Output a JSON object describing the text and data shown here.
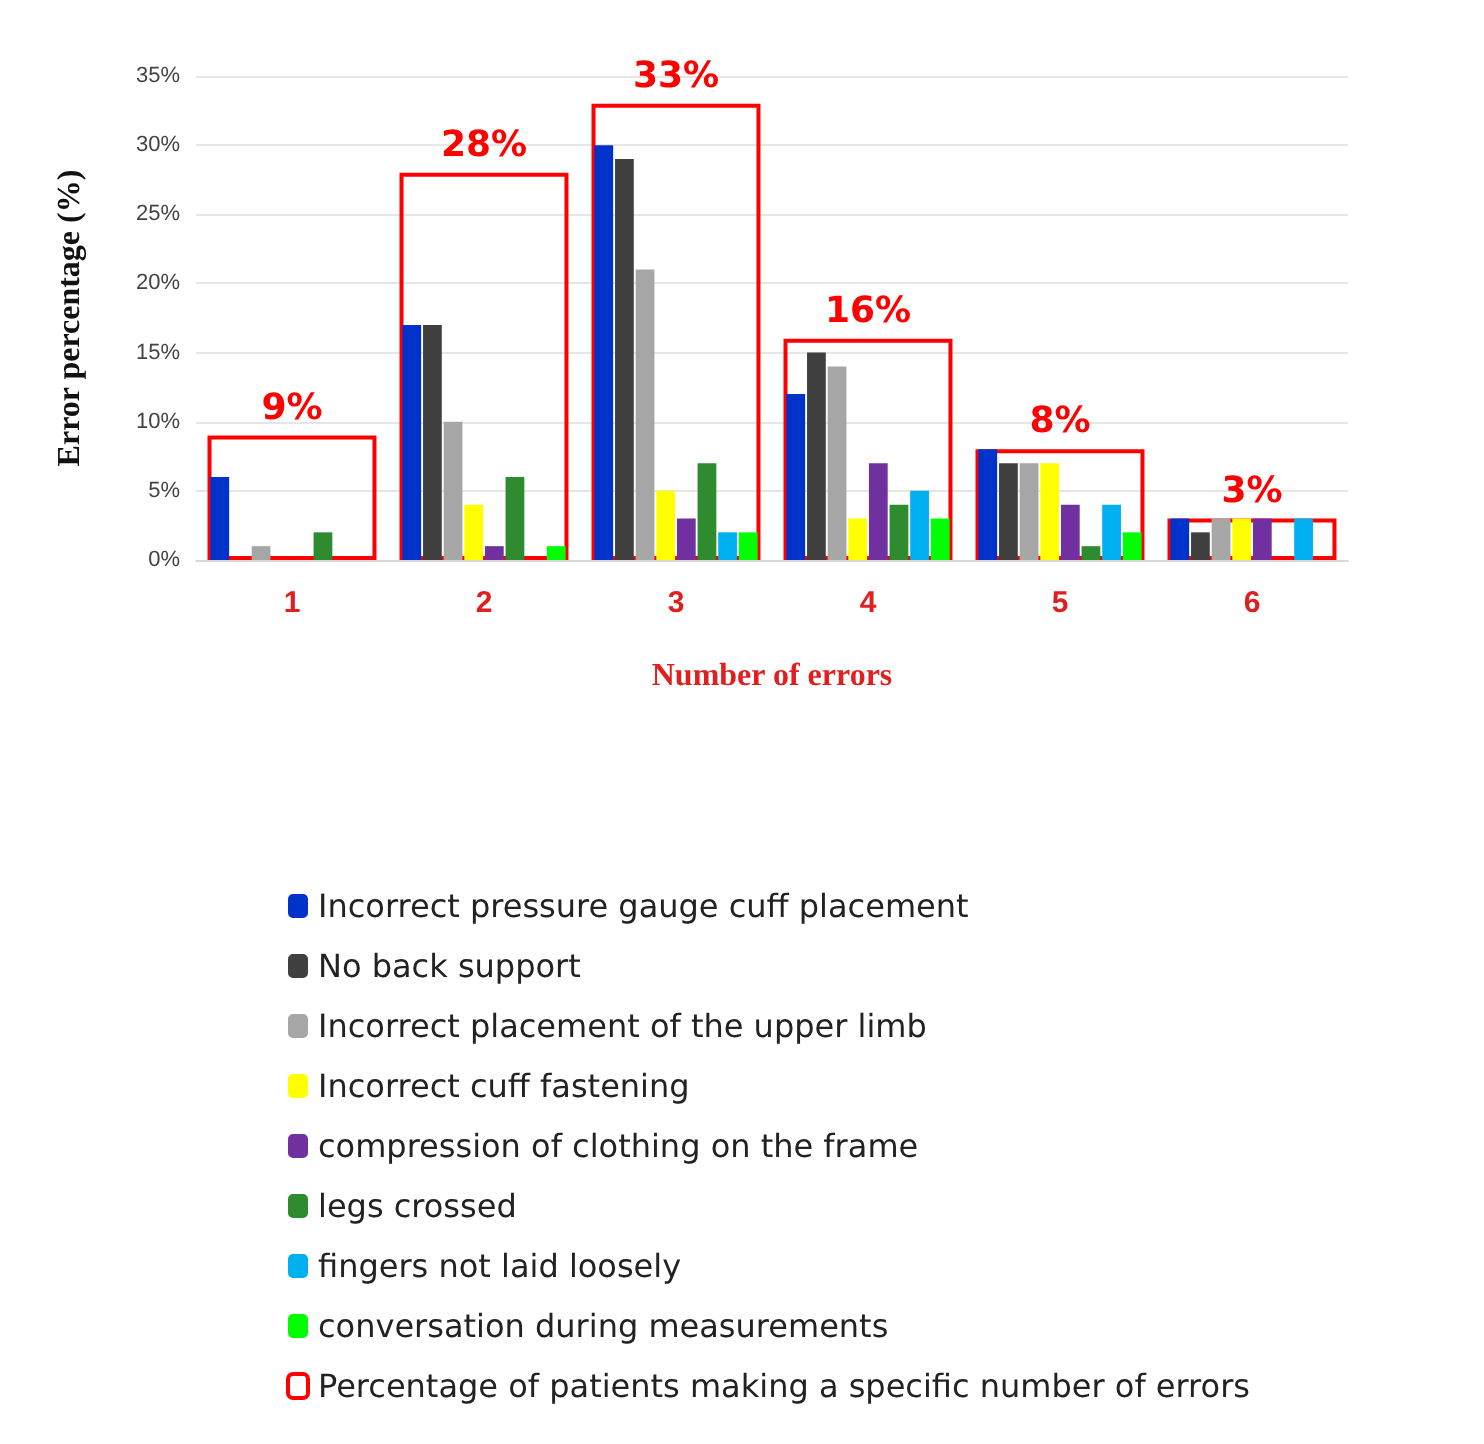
{
  "chart_data": {
    "type": "bar",
    "xlabel": "Number of errors",
    "ylabel": "Error percentage (%)",
    "categories": [
      "1",
      "2",
      "3",
      "4",
      "5",
      "6"
    ],
    "series": [
      {
        "name": "Incorrect pressure gauge cuff placement",
        "color": "#0033cc",
        "values": [
          6,
          17,
          30,
          12,
          8,
          3
        ]
      },
      {
        "name": "No back support",
        "color": "#404040",
        "values": [
          0,
          17,
          29,
          15,
          7,
          2
        ]
      },
      {
        "name": "Incorrect placement of the upper limb",
        "color": "#a6a6a6",
        "values": [
          1,
          10,
          21,
          14,
          7,
          3
        ]
      },
      {
        "name": "Incorrect cuff fastening",
        "color": "#ffff00",
        "values": [
          0,
          4,
          5,
          3,
          7,
          3
        ]
      },
      {
        "name": "compression of clothing on the frame",
        "color": "#7030a0",
        "values": [
          0,
          1,
          3,
          7,
          4,
          3
        ]
      },
      {
        "name": "legs crossed",
        "color": "#2e8b2e",
        "values": [
          2,
          6,
          7,
          4,
          1,
          0
        ]
      },
      {
        "name": "fingers not laid loosely",
        "color": "#00b0f0",
        "values": [
          0,
          0,
          2,
          5,
          4,
          3
        ]
      },
      {
        "name": "conversation during measurements",
        "color": "#00ff00",
        "values": [
          0,
          1,
          2,
          3,
          2,
          0
        ]
      },
      {
        "name": "Percentage of patients making a specific number of errors",
        "color": "#ff0000",
        "values": [
          9,
          28,
          33,
          16,
          8,
          3
        ],
        "value_labels": [
          "9%",
          "28%",
          "33%",
          "16%",
          "8%",
          "3%"
        ]
      }
    ],
    "ylim": [
      0,
      35
    ],
    "yticks": [
      {
        "value": 0,
        "label": "0%"
      },
      {
        "value": 5,
        "label": "5%"
      },
      {
        "value": 10,
        "label": "10%"
      },
      {
        "value": 15,
        "label": "15%"
      },
      {
        "value": 20,
        "label": "20%"
      },
      {
        "value": 25,
        "label": "25%"
      },
      {
        "value": 30,
        "label": "30%"
      },
      {
        "value": 35,
        "label": "35%"
      }
    ],
    "grid": "y",
    "legend": "bottom"
  }
}
